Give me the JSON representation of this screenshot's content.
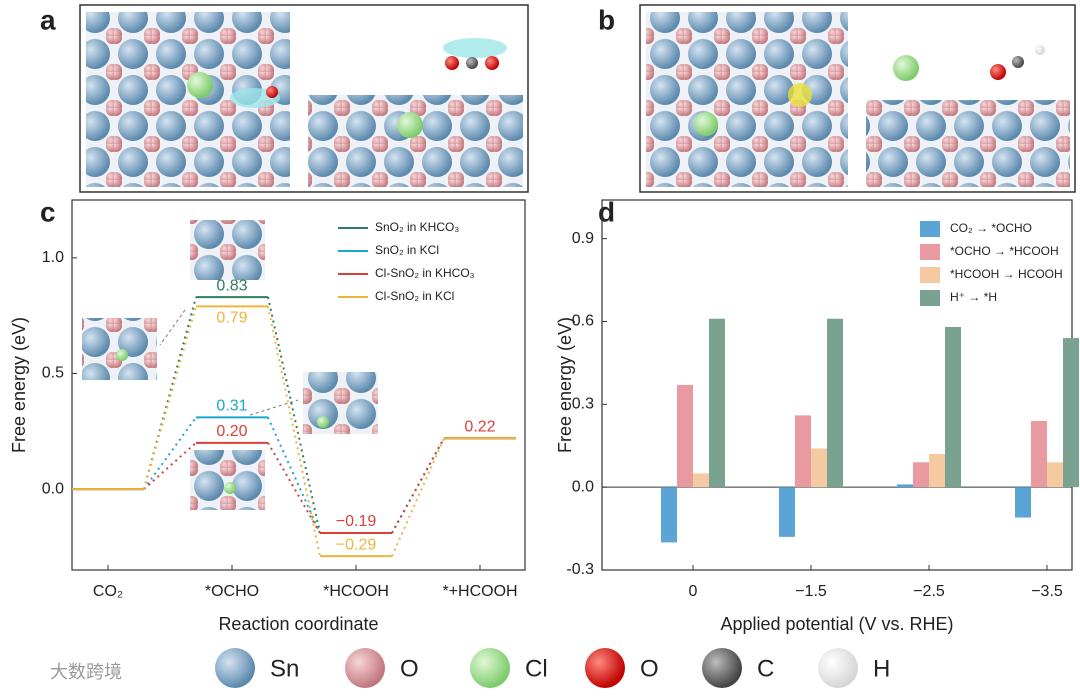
{
  "panels": [
    "a",
    "b",
    "c",
    "d"
  ],
  "atom_legend": [
    "Sn",
    "O",
    "Cl",
    "O",
    "C",
    "H"
  ],
  "watermark": "大数跨境",
  "chart_data": [
    {
      "type": "energy-diagram",
      "x_label": "Reaction coordinate",
      "y_label": "Free energy (eV)",
      "categories": [
        "CO₂",
        "*OCHO",
        "*HCOOH",
        "*+HCOOH"
      ],
      "ylim": [
        -0.35,
        1.25
      ],
      "yticks": [
        {
          "value": 0,
          "label": "0.0"
        },
        0.5,
        {
          "value": 1,
          "label": "1.0"
        }
      ],
      "series": [
        {
          "name": "SnO₂ in KHCO₃",
          "color": "#2f7d5c",
          "values": [
            0,
            0.83,
            -0.19,
            0.22
          ],
          "value_labels": [
            null,
            "0.83",
            null,
            null
          ]
        },
        {
          "name": "SnO₂ in KCl",
          "color": "#1ba6cc",
          "values": [
            0,
            0.31,
            -0.19,
            0.22
          ],
          "value_labels": [
            null,
            "0.31",
            null,
            null
          ]
        },
        {
          "name": "Cl-SnO₂ in KHCO₃",
          "color": "#d8403a",
          "values": [
            0,
            0.2,
            -0.19,
            0.22
          ],
          "value_labels": [
            null,
            "0.20",
            "−0.19",
            "0.22"
          ]
        },
        {
          "name": "Cl-SnO₂ in KCl",
          "color": "#f0b43c",
          "values": [
            0,
            0.79,
            -0.29,
            0.22
          ],
          "value_labels": [
            null,
            "0.79",
            "−0.29",
            null
          ]
        }
      ]
    },
    {
      "type": "bar",
      "x_label": "Applied potential (V vs. RHE)",
      "y_label": "Free energy (eV)",
      "categories": [
        "0",
        "−1.5",
        "−2.5",
        "−3.5"
      ],
      "ylim": [
        -0.3,
        1.04
      ],
      "yticks": [
        {
          "value": -0.3,
          "label": "-0.3"
        },
        {
          "value": 0,
          "label": "0.0"
        },
        0.3,
        0.6,
        0.9
      ],
      "series": [
        {
          "name": "CO₂ → *OCHO",
          "color": "#5ba4d6",
          "values": [
            -0.2,
            -0.18,
            0.01,
            -0.11
          ]
        },
        {
          "name": "*OCHO → *HCOOH",
          "color": "#e89aa0",
          "values": [
            0.37,
            0.26,
            0.09,
            0.24
          ]
        },
        {
          "name": "*HCOOH → HCOOH",
          "color": "#f5caa2",
          "values": [
            0.05,
            0.14,
            0.12,
            0.09
          ]
        },
        {
          "name": "H⁺ → *H",
          "color": "#79a390",
          "values": [
            0.61,
            0.61,
            0.58,
            0.54
          ]
        }
      ]
    }
  ]
}
